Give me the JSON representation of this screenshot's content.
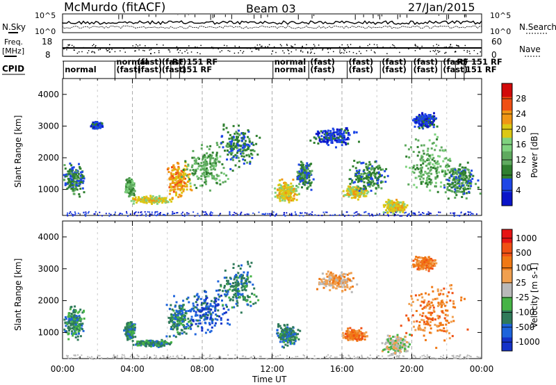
{
  "header": {
    "station": "McMurdo (fitACF)",
    "beam": "Beam 03",
    "date": "27/Jan/2015"
  },
  "top_panels": {
    "nsky_label": "N.Sky",
    "nsearch_label": "N.Search",
    "freq_label_1": "Freq.",
    "freq_label_2": "[MHz]",
    "nave_label": "Nave",
    "cpid_label": "CPID",
    "left_ticks_top": [
      "10^5",
      "10^0"
    ],
    "right_ticks_top": [
      "10^5",
      "10^0"
    ],
    "freq_ticks": [
      "18",
      "8"
    ],
    "nave_ticks": [
      "60",
      "0"
    ]
  },
  "cpid_segments": [
    {
      "t": 0.05,
      "row": 0,
      "label": "normal"
    },
    {
      "t": 3.0,
      "row": -1,
      "label": "normal"
    },
    {
      "t": 3.0,
      "row": 0,
      "label": "(fast)"
    },
    {
      "t": 4.2,
      "row": -1,
      "label": "(fast)"
    },
    {
      "t": 4.2,
      "row": 0,
      "label": "(fast)"
    },
    {
      "t": 5.6,
      "row": -1,
      "label": "(fast)"
    },
    {
      "t": 6.2,
      "row": -1,
      "label": "RF 151 RF"
    },
    {
      "t": 5.6,
      "row": 0,
      "label": "(fast)"
    },
    {
      "t": 6.7,
      "row": 0,
      "label": "151 RF"
    },
    {
      "t": 12.05,
      "row": -1,
      "label": "normal"
    },
    {
      "t": 12.05,
      "row": 0,
      "label": "normal"
    },
    {
      "t": 14.1,
      "row": -1,
      "label": "(fast)"
    },
    {
      "t": 14.1,
      "row": 0,
      "label": "(fast)"
    },
    {
      "t": 16.3,
      "row": -1,
      "label": "(fast)"
    },
    {
      "t": 16.3,
      "row": 0,
      "label": "(fast)"
    },
    {
      "t": 18.2,
      "row": -1,
      "label": "(fast)"
    },
    {
      "t": 18.2,
      "row": 0,
      "label": "(fast)"
    },
    {
      "t": 20.0,
      "row": -1,
      "label": "(fast)"
    },
    {
      "t": 20.0,
      "row": 0,
      "label": "(fast)"
    },
    {
      "t": 21.7,
      "row": -1,
      "label": "(fast)"
    },
    {
      "t": 22.5,
      "row": -1,
      "label": "RF 151 RF"
    },
    {
      "t": 21.7,
      "row": 0,
      "label": "(fast)"
    },
    {
      "t": 23.0,
      "row": 0,
      "label": "151 RF"
    }
  ],
  "chart_data": [
    {
      "type": "heatmap",
      "name": "power",
      "ylabel": "Slant Range [km]",
      "ylim": [
        180,
        4500
      ],
      "yticks": [
        1000,
        2000,
        3000,
        4000
      ],
      "colorbar_label": "Power [dB]",
      "colorbar_ticks": [
        4,
        8,
        12,
        16,
        20,
        24,
        28
      ],
      "color_levels": [
        "#0a14c8",
        "#1e46e6",
        "#2f7f2f",
        "#5faa5f",
        "#7fd27f",
        "#dcc814",
        "#f09614",
        "#f05014",
        "#d20a0a"
      ],
      "blobs": [
        {
          "t": 0.6,
          "r": 1350,
          "dt": 0.8,
          "dr": 650,
          "level": 2
        },
        {
          "t": 1.9,
          "r": 3050,
          "dt": 0.45,
          "dr": 130,
          "level": 1
        },
        {
          "t": 3.8,
          "r": 1100,
          "dt": 0.35,
          "dr": 350,
          "level": 3
        },
        {
          "t": 5.1,
          "r": 700,
          "dt": 1.4,
          "dr": 160,
          "level": 5
        },
        {
          "t": 6.6,
          "r": 1350,
          "dt": 0.9,
          "dr": 700,
          "level": 6
        },
        {
          "t": 8.2,
          "r": 1700,
          "dt": 1.6,
          "dr": 850,
          "level": 3
        },
        {
          "t": 10.0,
          "r": 2400,
          "dt": 1.5,
          "dr": 900,
          "level": 2
        },
        {
          "t": 12.8,
          "r": 950,
          "dt": 0.9,
          "dr": 450,
          "level": 5
        },
        {
          "t": 13.8,
          "r": 1500,
          "dt": 0.6,
          "dr": 550,
          "level": 2
        },
        {
          "t": 16.7,
          "r": 950,
          "dt": 0.9,
          "dr": 250,
          "level": 5
        },
        {
          "t": 15.5,
          "r": 2700,
          "dt": 1.6,
          "dr": 400,
          "level": 1
        },
        {
          "t": 17.5,
          "r": 1450,
          "dt": 1.5,
          "dr": 700,
          "level": 2
        },
        {
          "t": 19.0,
          "r": 500,
          "dt": 0.9,
          "dr": 260,
          "level": 5
        },
        {
          "t": 21.0,
          "r": 1700,
          "dt": 2.0,
          "dr": 1200,
          "level": 3
        },
        {
          "t": 22.8,
          "r": 1300,
          "dt": 1.2,
          "dr": 700,
          "level": 2
        },
        {
          "t": 20.7,
          "r": 3200,
          "dt": 0.9,
          "dr": 300,
          "level": 1
        }
      ]
    },
    {
      "type": "heatmap",
      "name": "velocity",
      "ylabel": "Slant Range [km]",
      "ylim": [
        180,
        4500
      ],
      "yticks": [
        1000,
        2000,
        3000,
        4000
      ],
      "colorbar_label": "Velocity [m s-1]",
      "colorbar_ticks": [
        1000,
        500,
        100,
        25,
        -25,
        -100,
        -500,
        -1000
      ],
      "color_levels": [
        "#1432c8",
        "#1e64dc",
        "#2f7a5a",
        "#46b446",
        "#b9b9b9",
        "#f0a050",
        "#f07814",
        "#f05014",
        "#e61414"
      ],
      "blobs": [
        {
          "t": 0.6,
          "r": 1350,
          "dt": 0.8,
          "dr": 650,
          "level": 2
        },
        {
          "t": 3.8,
          "r": 1100,
          "dt": 0.35,
          "dr": 350,
          "level": 2
        },
        {
          "t": 5.1,
          "r": 700,
          "dt": 1.4,
          "dr": 160,
          "level": 2
        },
        {
          "t": 6.6,
          "r": 1450,
          "dt": 0.9,
          "dr": 750,
          "level": 2
        },
        {
          "t": 8.2,
          "r": 1700,
          "dt": 1.6,
          "dr": 850,
          "level": 1
        },
        {
          "t": 10.0,
          "r": 2400,
          "dt": 1.5,
          "dr": 900,
          "level": 2
        },
        {
          "t": 12.8,
          "r": 950,
          "dt": 0.9,
          "dr": 450,
          "level": 2
        },
        {
          "t": 16.7,
          "r": 950,
          "dt": 0.9,
          "dr": 250,
          "level": 6
        },
        {
          "t": 15.6,
          "r": 2650,
          "dt": 1.4,
          "dr": 400,
          "level": 5
        },
        {
          "t": 19.0,
          "r": 650,
          "dt": 1.0,
          "dr": 400,
          "level": 4
        },
        {
          "t": 21.2,
          "r": 1650,
          "dt": 2.2,
          "dr": 1300,
          "level": 6
        },
        {
          "t": 20.7,
          "r": 3200,
          "dt": 0.9,
          "dr": 300,
          "level": 6
        }
      ]
    }
  ],
  "x_axis": {
    "label": "Time UT",
    "ticks": [
      "00:00",
      "04:00",
      "08:00",
      "12:00",
      "16:00",
      "20:00",
      "00:00"
    ],
    "xlim": [
      0,
      24
    ]
  }
}
